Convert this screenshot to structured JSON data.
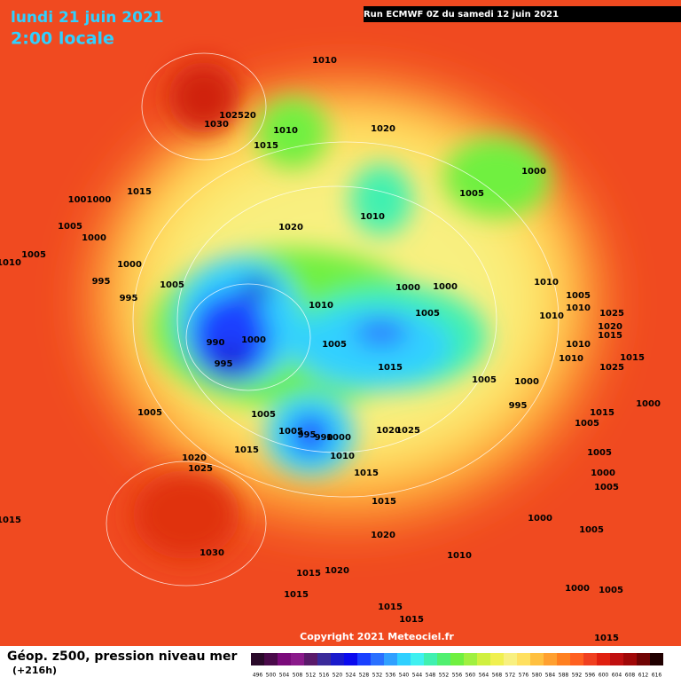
{
  "header": {
    "date": "lundi 21 juin 2021",
    "time": "2:00 locale",
    "run": "Run ECMWF 0Z du samedi 12 juin 2021"
  },
  "footer": {
    "title": "Géop. z500, pression niveau mer",
    "lead": "(+216h)",
    "copyright": "Copyright 2021 Meteociel.fr"
  },
  "isobar_labels": [
    "1010",
    "102520",
    "1030",
    "1010",
    "1015",
    "1020",
    "1000",
    "1005",
    "1015",
    "1001000",
    "1010",
    "1020",
    "1005",
    "1000",
    "1005",
    "1010",
    "1000",
    "995",
    "995",
    "1005",
    "1000",
    "1000",
    "1010",
    "1010",
    "1005",
    "1010",
    "1025",
    "1005",
    "1010",
    "1020",
    "1015",
    "990",
    "1000",
    "1005",
    "1010",
    "1010",
    "1025",
    "1015",
    "995",
    "1015",
    "1005",
    "1000",
    "995",
    "1000",
    "1015",
    "1005",
    "1005",
    "1005",
    "995",
    "990",
    "1000",
    "1020",
    "1025",
    "1005",
    "1015",
    "1010",
    "1020",
    "1025",
    "1005",
    "1000",
    "1015",
    "1005",
    "1015",
    "1000",
    "1005",
    "1015",
    "1020",
    "1030",
    "1010",
    "1020",
    "1015",
    "1000",
    "1005",
    "1015",
    "1015",
    "1015",
    "1015"
  ],
  "colorbar": {
    "labels": [
      "496",
      "500",
      "504",
      "508",
      "512",
      "516",
      "520",
      "524",
      "528",
      "532",
      "536",
      "540",
      "544",
      "548",
      "552",
      "556",
      "560",
      "564",
      "568",
      "572",
      "576",
      "580",
      "584",
      "588",
      "592",
      "596",
      "600",
      "604",
      "608",
      "612",
      "616"
    ],
    "colors": [
      "#2a0a2a",
      "#4a0a4a",
      "#7a0a7a",
      "#8a1a8a",
      "#5a1a6a",
      "#3a2a9a",
      "#1a1acc",
      "#0a0aee",
      "#1a40ff",
      "#2a70ff",
      "#30a0ff",
      "#30d0ff",
      "#40f0f0",
      "#40f0b0",
      "#50f070",
      "#70f040",
      "#a0f040",
      "#d0f040",
      "#f0f050",
      "#f8f080",
      "#ffe060",
      "#ffc040",
      "#ffa030",
      "#ff8020",
      "#ff6020",
      "#f04020",
      "#e02010",
      "#c01010",
      "#a00808",
      "#700404",
      "#200000"
    ]
  }
}
